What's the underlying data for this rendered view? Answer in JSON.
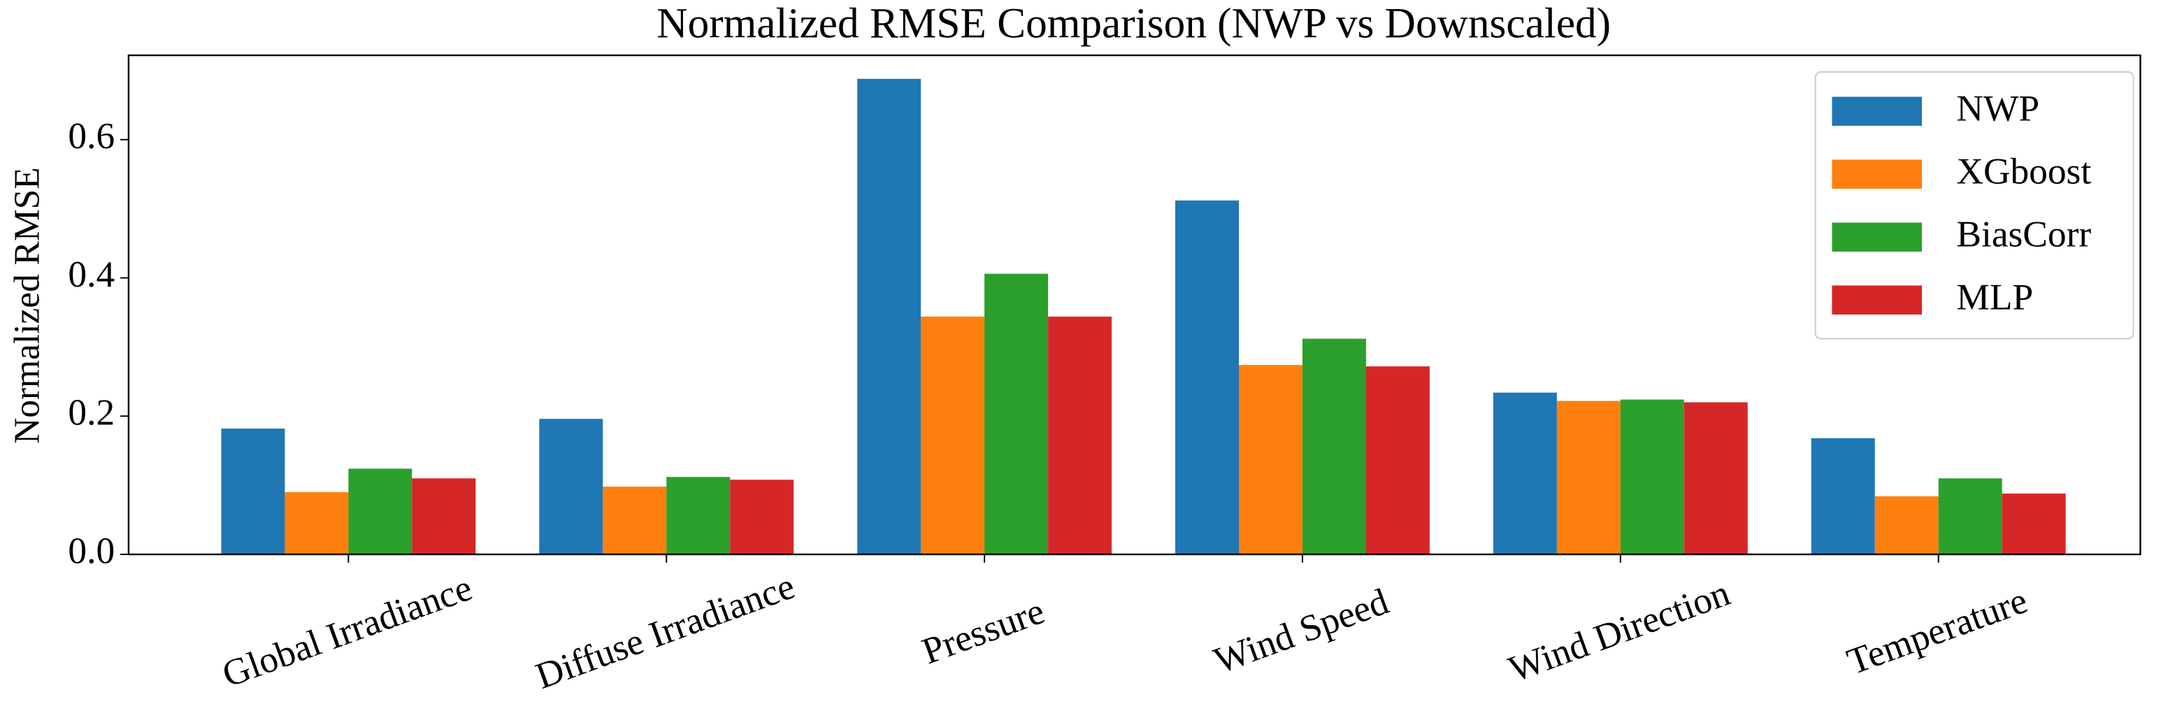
{
  "chart_data": {
    "type": "bar",
    "title": "Normalized RMSE Comparison (NWP vs Downscaled)",
    "y_label": "Normalized RMSE",
    "categories": [
      "Global Irradiance",
      "Diffuse Irradiance",
      "Pressure",
      "Wind Speed",
      "Wind Direction",
      "Temperature"
    ],
    "series": [
      {
        "name": "NWP",
        "color": "#1f77b4",
        "values": [
          0.182,
          0.196,
          0.688,
          0.512,
          0.234,
          0.168
        ]
      },
      {
        "name": "XGboost",
        "color": "#ff7f0e",
        "values": [
          0.09,
          0.098,
          0.344,
          0.274,
          0.222,
          0.084
        ]
      },
      {
        "name": "BiasCorr",
        "color": "#2ca02c",
        "values": [
          0.124,
          0.112,
          0.406,
          0.312,
          0.224,
          0.11
        ]
      },
      {
        "name": "MLP",
        "color": "#d62728",
        "values": [
          0.11,
          0.108,
          0.344,
          0.272,
          0.22,
          0.088
        ]
      }
    ],
    "ylim": [
      0,
      0.722
    ],
    "yticks": [
      {
        "value": 0,
        "label": "0.0"
      },
      0.2,
      0.4,
      0.6
    ],
    "grid": false,
    "legend": "upper right"
  }
}
